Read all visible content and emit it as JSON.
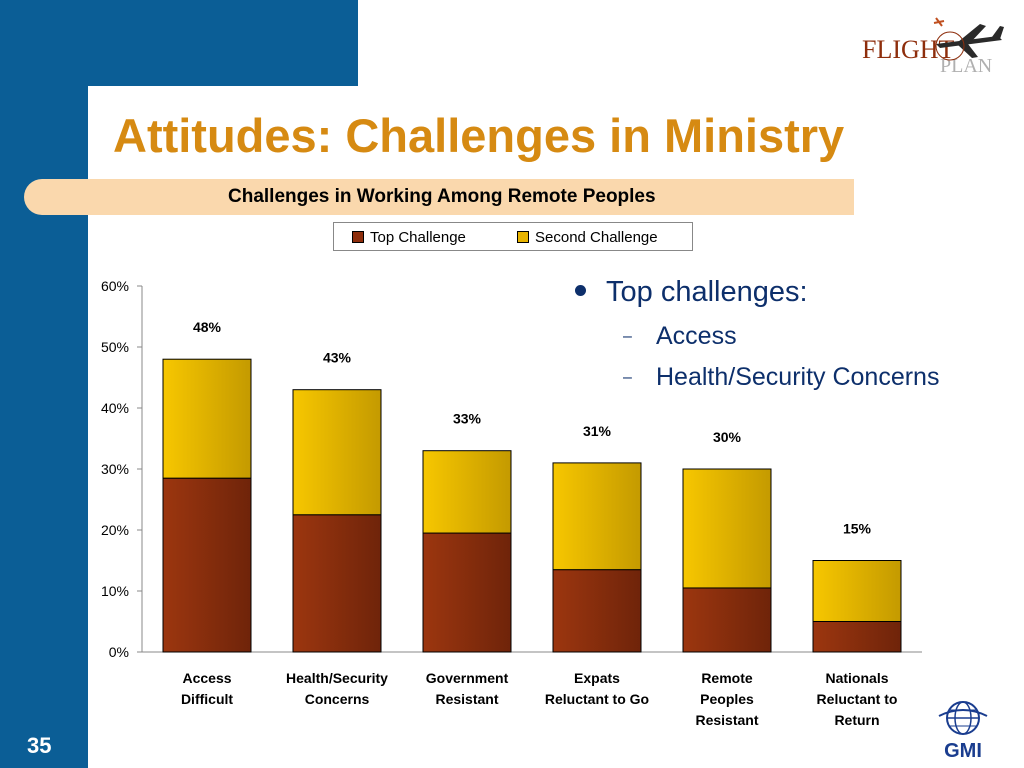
{
  "slide": {
    "title": "Attitudes: Challenges in Ministry",
    "subtitle": "Challenges in Working Among Remote Peoples",
    "slide_number": "35",
    "logo_top": "FLIGHTPLAN",
    "logo_top_parts": [
      "FLIGHT",
      "PLAN"
    ],
    "logo_bottom": "GMI"
  },
  "bullets": {
    "main": "Top challenges:",
    "subs": [
      "Access",
      "Health/Security Concerns"
    ]
  },
  "colors": {
    "sidebar": "#0b5e96",
    "title": "#d68a12",
    "subtitle_band": "#fad8ad",
    "top_challenge": "#8e2e0c",
    "second_challenge": "#e8b400",
    "bullet_text": "#0d2f6b"
  },
  "chart_data": {
    "type": "bar",
    "stacked": true,
    "title": "Challenges in Working Among Remote Peoples",
    "categories": [
      [
        "Access",
        "Difficult"
      ],
      [
        "Health/Security",
        "Concerns"
      ],
      [
        "Government",
        "Resistant"
      ],
      [
        "Expats",
        "Reluctant to Go"
      ],
      [
        "Remote",
        "Peoples",
        "Resistant"
      ],
      [
        "Nationals",
        "Reluctant to",
        "Return"
      ]
    ],
    "series": [
      {
        "name": "Top Challenge",
        "values": [
          28.5,
          22.5,
          19.5,
          13.5,
          10.5,
          5
        ]
      },
      {
        "name": "Second Challenge",
        "values": [
          19.5,
          20.5,
          13.5,
          17.5,
          19.5,
          10
        ]
      }
    ],
    "totals": [
      "48%",
      "43%",
      "33%",
      "31%",
      "30%",
      "15%"
    ],
    "total_values": [
      48,
      43,
      33,
      31,
      30,
      15
    ],
    "ylim": [
      0,
      60
    ],
    "yticks": [
      "0%",
      "10%",
      "20%",
      "30%",
      "40%",
      "50%",
      "60%"
    ],
    "legend_position": "top",
    "grid": false
  }
}
